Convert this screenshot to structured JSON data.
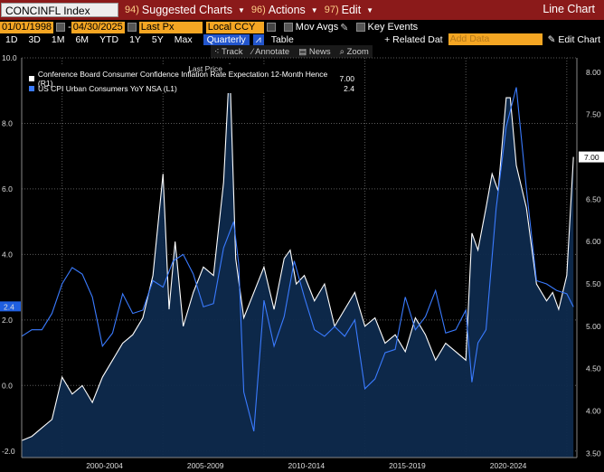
{
  "toolbar": {
    "ticker": "CONCINFL Index",
    "menus": [
      {
        "num": "94)",
        "label": "Suggested Charts"
      },
      {
        "num": "96)",
        "label": "Actions"
      },
      {
        "num": "97)",
        "label": "Edit"
      }
    ],
    "view": "Line Chart"
  },
  "range": {
    "start": "01/01/1998",
    "end": "04/30/2025",
    "field": "Last Px",
    "currency": "Local CCY",
    "mov_avgs": "Mov Avgs",
    "key_events": "Key Events",
    "related": "+ Related Dat",
    "add_data_placeholder": "Add Data",
    "edit_chart": "Edit Chart"
  },
  "periods": [
    "1D",
    "3D",
    "1M",
    "6M",
    "YTD",
    "1Y",
    "5Y",
    "Max"
  ],
  "frequency": "Quarterly",
  "table_label": "Table",
  "tools": [
    "Track",
    "Annotate",
    "News",
    "Zoom"
  ],
  "legend": {
    "header": "Last Price",
    "items": [
      {
        "label": "Conference Board Consumer Confidence Inflation Rate Expectation 12-Month Hence (R1)",
        "value": "7.00",
        "color": "#ffffff"
      },
      {
        "label": "US CPI Urban Consumers YoY NSA (L1)",
        "value": "2.4",
        "color": "#3a7bff"
      }
    ]
  },
  "chart_data": {
    "type": "line",
    "left_axis": {
      "ticks": [
        "10.0",
        "8.0",
        "6.0",
        "4.0",
        "2.0",
        "0.0",
        "-2.0"
      ],
      "range": [
        -2.2,
        10.0
      ]
    },
    "right_axis": {
      "ticks": [
        "8.00",
        "7.50",
        "7.00",
        "6.50",
        "6.00",
        "5.50",
        "5.00",
        "4.50",
        "4.00",
        "3.50"
      ],
      "range": [
        3.45,
        8.17
      ]
    },
    "x_labels": [
      "2000-2004",
      "2005-2009",
      "2010-2014",
      "2015-2019",
      "2020-2024"
    ],
    "last_values": {
      "left": "2.4",
      "right": "7.00"
    },
    "series": [
      {
        "name": "Conference Board Consumer Confidence Inflation Rate Expectation 12-Month Hence (R1)",
        "axis": "right",
        "color": "#ffffff",
        "x": [
          1998.0,
          1998.5,
          1999.0,
          1999.5,
          2000.0,
          2000.5,
          2001.0,
          2001.5,
          2002.0,
          2002.5,
          2003.0,
          2003.5,
          2004.0,
          2004.5,
          2005.0,
          2005.3,
          2005.6,
          2006.0,
          2006.5,
          2007.0,
          2007.5,
          2008.0,
          2008.3,
          2008.6,
          2009.0,
          2009.5,
          2010.0,
          2010.5,
          2011.0,
          2011.3,
          2011.6,
          2012.0,
          2012.5,
          2013.0,
          2013.5,
          2014.0,
          2014.5,
          2015.0,
          2015.5,
          2016.0,
          2016.5,
          2017.0,
          2017.5,
          2018.0,
          2018.5,
          2019.0,
          2019.5,
          2020.0,
          2020.3,
          2020.6,
          2021.0,
          2021.3,
          2021.6,
          2022.0,
          2022.2,
          2022.5,
          2023.0,
          2023.5,
          2024.0,
          2024.3,
          2024.6,
          2025.0,
          2025.33
        ],
        "values": [
          3.65,
          3.7,
          3.8,
          3.9,
          4.4,
          4.2,
          4.3,
          4.1,
          4.4,
          4.6,
          4.8,
          4.9,
          5.1,
          5.6,
          6.8,
          5.2,
          6.0,
          5.0,
          5.4,
          5.7,
          5.6,
          6.7,
          8.1,
          5.8,
          5.1,
          5.4,
          5.7,
          5.2,
          5.8,
          5.9,
          5.5,
          5.6,
          5.3,
          5.5,
          5.0,
          5.2,
          5.4,
          5.0,
          5.1,
          4.8,
          4.9,
          4.7,
          5.1,
          4.9,
          4.6,
          4.8,
          4.7,
          4.6,
          6.1,
          5.9,
          6.4,
          6.8,
          6.6,
          7.7,
          7.7,
          6.9,
          6.4,
          5.5,
          5.3,
          5.4,
          5.2,
          5.6,
          7.0
        ]
      },
      {
        "name": "US CPI Urban Consumers YoY NSA (L1)",
        "axis": "left",
        "color": "#3a7bff",
        "x": [
          1998.0,
          1998.5,
          1999.0,
          1999.5,
          2000.0,
          2000.5,
          2001.0,
          2001.5,
          2002.0,
          2002.5,
          2003.0,
          2003.5,
          2004.0,
          2004.5,
          2005.0,
          2005.5,
          2006.0,
          2006.5,
          2007.0,
          2007.5,
          2008.0,
          2008.5,
          2008.75,
          2009.0,
          2009.5,
          2010.0,
          2010.5,
          2011.0,
          2011.5,
          2012.0,
          2012.5,
          2013.0,
          2013.5,
          2014.0,
          2014.5,
          2015.0,
          2015.5,
          2016.0,
          2016.5,
          2017.0,
          2017.5,
          2018.0,
          2018.5,
          2019.0,
          2019.5,
          2020.0,
          2020.3,
          2020.6,
          2021.0,
          2021.5,
          2022.0,
          2022.5,
          2023.0,
          2023.5,
          2024.0,
          2024.5,
          2025.0,
          2025.33
        ],
        "values": [
          1.5,
          1.7,
          1.7,
          2.2,
          3.1,
          3.6,
          3.4,
          2.7,
          1.2,
          1.6,
          2.8,
          2.2,
          2.3,
          3.2,
          3.0,
          3.8,
          4.0,
          3.4,
          2.4,
          2.5,
          4.2,
          5.0,
          3.7,
          -0.2,
          -1.4,
          2.6,
          1.2,
          2.1,
          3.8,
          2.7,
          1.7,
          1.5,
          1.8,
          1.5,
          2.0,
          -0.1,
          0.2,
          1.0,
          1.1,
          2.7,
          1.7,
          2.1,
          2.9,
          1.6,
          1.7,
          2.3,
          0.1,
          1.3,
          1.7,
          5.4,
          7.9,
          9.1,
          6.0,
          3.2,
          3.1,
          2.9,
          2.8,
          2.4
        ]
      }
    ]
  }
}
